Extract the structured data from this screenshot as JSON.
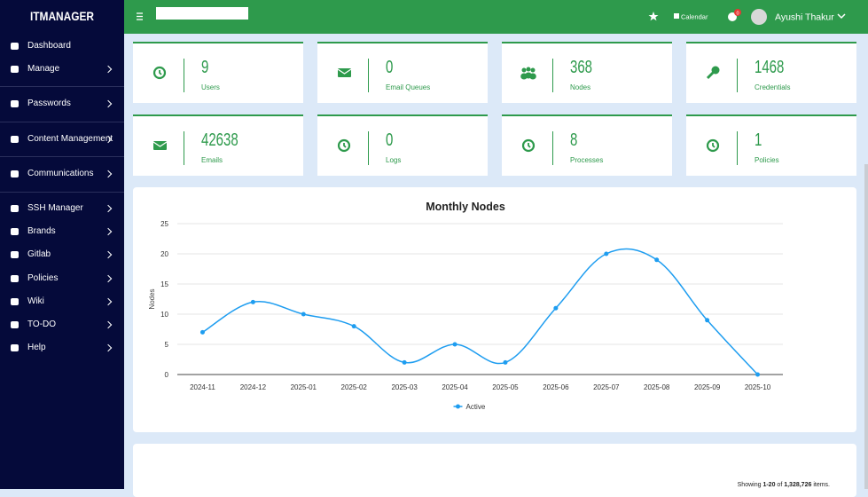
{
  "header": {
    "brand": "ITMANAGER",
    "calendar": "Calendar",
    "badge": "0",
    "user": "Ayushi Thakur"
  },
  "sidebar": {
    "items": [
      "Dashboard",
      "Manage",
      "Passwords",
      "Content Management",
      "Communications",
      "SSH Manager",
      "Brands",
      "Gitlab",
      "Policies",
      "Wiki",
      "TO-DO",
      "Help"
    ]
  },
  "cards": [
    {
      "value": 9,
      "label": "Users"
    },
    {
      "value": 0,
      "label": "Email Queues"
    },
    {
      "value": 368,
      "label": "Nodes"
    },
    {
      "value": 1468,
      "label": "Credentials"
    },
    {
      "value": 42638,
      "label": "Emails"
    },
    {
      "value": 0,
      "label": "Logs"
    },
    {
      "value": 8,
      "label": "Processes"
    },
    {
      "value": 1,
      "label": "Policies"
    }
  ],
  "chart_data": {
    "type": "line",
    "title": "Monthly Nodes",
    "y_label": "Nodes",
    "categories": [
      "2024-11",
      "2024-12",
      "2025-01",
      "2025-02",
      "2025-03",
      "2025-04",
      "2025-05",
      "2025-06",
      "2025-07",
      "2025-08",
      "2025-09",
      "2025-10"
    ],
    "series": [
      {
        "name": "Active",
        "color": "#1e9df0",
        "values": [
          7,
          12,
          10,
          8,
          2,
          5,
          2,
          11,
          20,
          19,
          9,
          0
        ]
      }
    ],
    "ylim": [
      0,
      25
    ],
    "yticks": [
      0,
      5,
      10,
      15,
      20,
      25
    ],
    "grid": true,
    "legend": "bottom"
  },
  "footer": {
    "summary": [
      "Showing",
      "1-20",
      "of",
      "1,328,726",
      "items."
    ]
  }
}
